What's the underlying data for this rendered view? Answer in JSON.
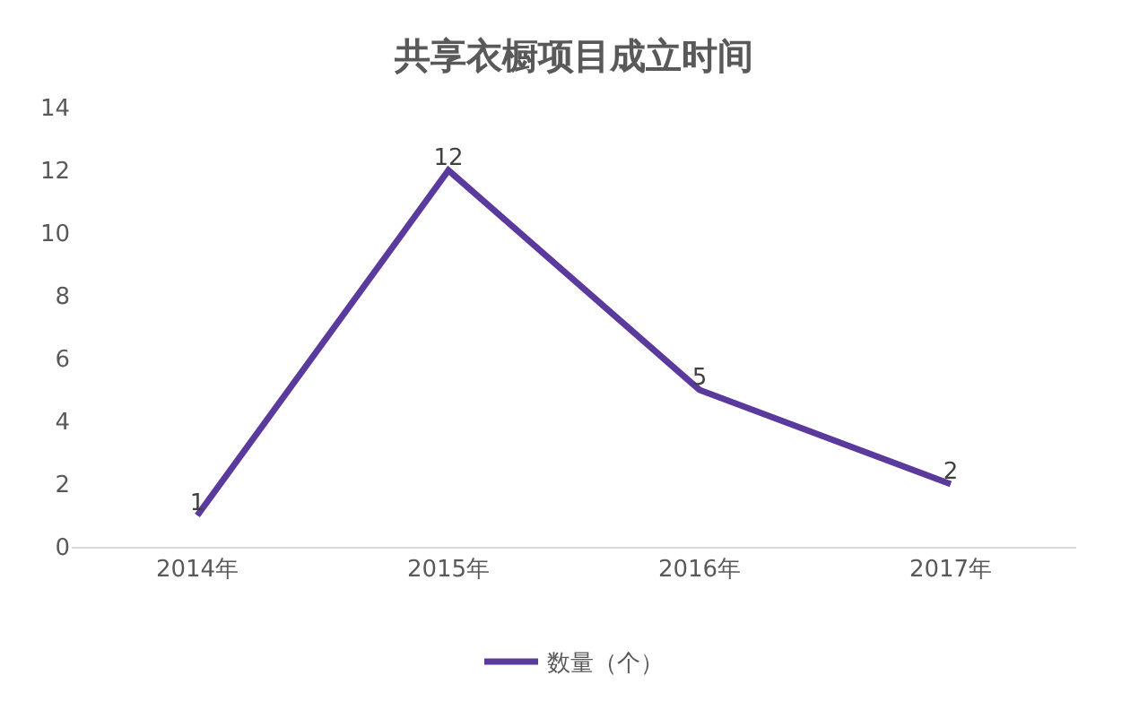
{
  "chart_data": {
    "type": "line",
    "title": "共享衣橱项目成立时间",
    "categories": [
      "2014年",
      "2015年",
      "2016年",
      "2017年"
    ],
    "series": [
      {
        "name": "数量（个）",
        "color": "#5b3a9e",
        "values": [
          1,
          12,
          5,
          2
        ]
      }
    ],
    "ylim": [
      0,
      14
    ],
    "yticks": [
      0,
      2,
      4,
      6,
      8,
      10,
      12,
      14
    ],
    "data_labels": true,
    "legend": "bottom",
    "grid": false,
    "marker": "none",
    "line_style": "solid"
  }
}
